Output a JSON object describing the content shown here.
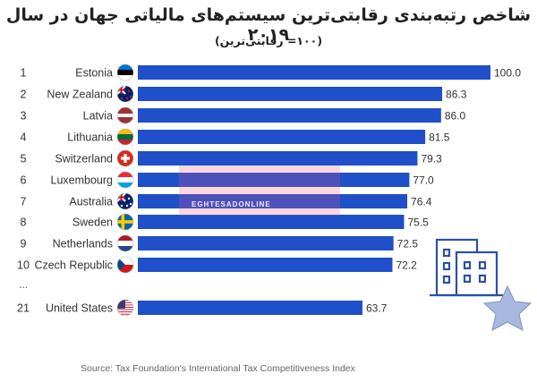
{
  "title": "شاخص رتبه‌بندی رقابتی‌ترین سیستم‌های مالیاتی جهان  در سال ۲۰۱۹",
  "subtitle": "(۱۰۰= رقابتی‌ترین)",
  "source": "Source: Tax Foundation's International Tax Competitiveness Index",
  "ellipsis": "...",
  "watermark": {
    "text": "EGHTESADONLINE",
    "color": "#e96a8e"
  },
  "colors": {
    "bar": "#1f4fc9",
    "accent_icon": "#2b4fa8",
    "star": "#a9b8de"
  },
  "decor_icons": [
    "building-icon",
    "star-icon"
  ],
  "chart_data": {
    "type": "bar",
    "orientation": "horizontal",
    "xlim": [
      0,
      100
    ],
    "rows": [
      {
        "rank": "1",
        "country": "Estonia",
        "value": 100.0,
        "label": "100.0",
        "flag": "estonia-flag-icon"
      },
      {
        "rank": "2",
        "country": "New Zealand",
        "value": 86.3,
        "label": "86.3",
        "flag": "new-zealand-flag-icon"
      },
      {
        "rank": "3",
        "country": "Latvia",
        "value": 86.0,
        "label": "86.0",
        "flag": "latvia-flag-icon"
      },
      {
        "rank": "4",
        "country": "Lithuania",
        "value": 81.5,
        "label": "81.5",
        "flag": "lithuania-flag-icon"
      },
      {
        "rank": "5",
        "country": "Switzerland",
        "value": 79.3,
        "label": "79.3",
        "flag": "switzerland-flag-icon"
      },
      {
        "rank": "6",
        "country": "Luxembourg",
        "value": 77.0,
        "label": "77.0",
        "flag": "luxembourg-flag-icon"
      },
      {
        "rank": "7",
        "country": "Australia",
        "value": 76.4,
        "label": "76.4",
        "flag": "australia-flag-icon"
      },
      {
        "rank": "8",
        "country": "Sweden",
        "value": 75.5,
        "label": "75.5",
        "flag": "sweden-flag-icon"
      },
      {
        "rank": "9",
        "country": "Netherlands",
        "value": 72.5,
        "label": "72.5",
        "flag": "netherlands-flag-icon"
      },
      {
        "rank": "10",
        "country": "Czech Republic",
        "value": 72.2,
        "label": "72.2",
        "flag": "czech-republic-flag-icon"
      },
      {
        "rank": "21",
        "country": "United States",
        "value": 63.7,
        "label": "63.7",
        "flag": "united-states-flag-icon"
      }
    ]
  }
}
